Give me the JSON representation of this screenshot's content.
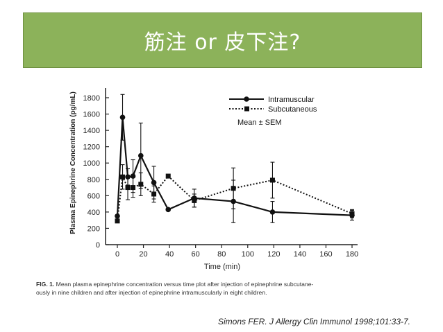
{
  "slide": {
    "title": "筋注 or 皮下注?",
    "caption_label": "FIG. 1.",
    "caption_line1": "Mean plasma epinephrine concentration versus time plot after injection of epinephrine subcutane-",
    "caption_line2": "ously in nine children and after injection of epinephrine intramuscularly in eight children.",
    "citation": "Simons FER. J Allergy Clin Immunol 1998;101:33-7."
  },
  "chart_data": {
    "type": "line",
    "xlabel": "Time (min)",
    "ylabel": "Plasma Epinephrine Concentration (pg/mL)",
    "xlim": [
      0,
      180
    ],
    "ylim": [
      0,
      1800
    ],
    "xticks": [
      0,
      20,
      40,
      60,
      80,
      100,
      120,
      140,
      160,
      180
    ],
    "yticks": [
      0,
      200,
      400,
      600,
      800,
      1000,
      1200,
      1400,
      1600,
      1800
    ],
    "legend_position": "top-right",
    "annotation": "Mean ± SEM",
    "series": [
      {
        "name": "Intramuscular",
        "style": "solid-circle",
        "points": [
          {
            "x": 0,
            "y": 350,
            "err": 0
          },
          {
            "x": 4,
            "y": 1560,
            "err": 280
          },
          {
            "x": 8,
            "y": 830,
            "err": 100
          },
          {
            "x": 12,
            "y": 840,
            "err": 200
          },
          {
            "x": 18,
            "y": 1090,
            "err": 400
          },
          {
            "x": 28,
            "y": 760,
            "err": 200
          },
          {
            "x": 39,
            "y": 430,
            "err": 0
          },
          {
            "x": 59,
            "y": 570,
            "err": 110
          },
          {
            "x": 89,
            "y": 530,
            "err": 260
          },
          {
            "x": 119,
            "y": 400,
            "err": 130
          },
          {
            "x": 180,
            "y": 360,
            "err": 60
          }
        ]
      },
      {
        "name": "Subcutaneous",
        "style": "dotted-square",
        "points": [
          {
            "x": 0,
            "y": 290,
            "err": 0
          },
          {
            "x": 4,
            "y": 830,
            "err": 150
          },
          {
            "x": 8,
            "y": 700,
            "err": 150
          },
          {
            "x": 12,
            "y": 700,
            "err": 120
          },
          {
            "x": 18,
            "y": 740,
            "err": 140
          },
          {
            "x": 28,
            "y": 620,
            "err": 100
          },
          {
            "x": 39,
            "y": 840,
            "err": 0
          },
          {
            "x": 59,
            "y": 540,
            "err": 80
          },
          {
            "x": 89,
            "y": 690,
            "err": 250
          },
          {
            "x": 119,
            "y": 790,
            "err": 220
          },
          {
            "x": 180,
            "y": 380,
            "err": 50
          }
        ]
      }
    ]
  }
}
